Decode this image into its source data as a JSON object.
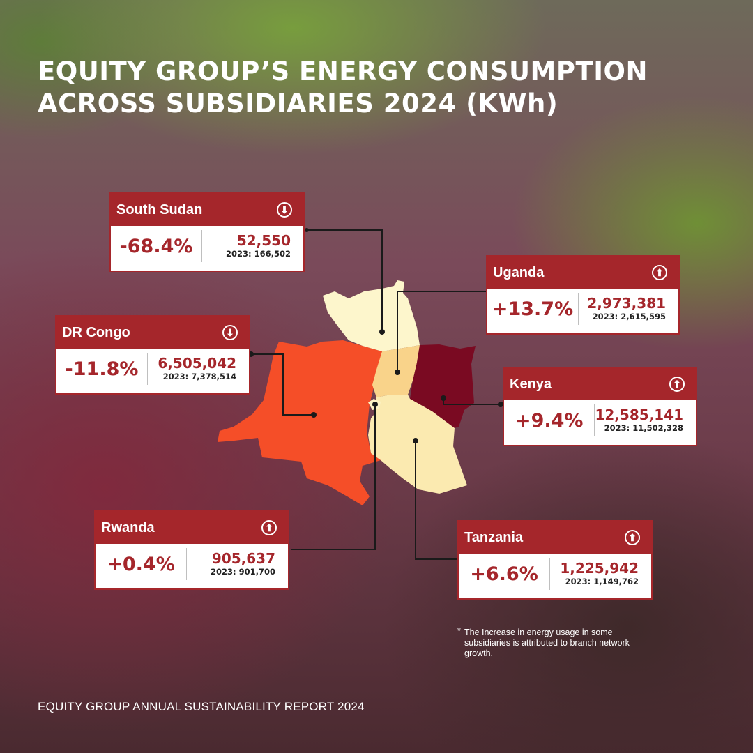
{
  "title": {
    "line1": "EQUITY GROUP’S ENERGY CONSUMPTION",
    "line2": "ACROSS SUBSIDIARIES 2024 (KWh)"
  },
  "colors": {
    "accent": "#a5262b",
    "kenya": "#7a0a22",
    "dr_congo": "#f54e28",
    "uganda": "#f9d38a",
    "tanzania": "#fbeab0",
    "south_sudan": "#fdf6cc",
    "rwanda": "#fdf3c4"
  },
  "countries": {
    "south_sudan": {
      "name": "South Sudan",
      "change": "-68.4%",
      "value": "52,550",
      "previous": "2023: 166,502",
      "trend_icon": "arrow-down-icon",
      "trend_glyph": "⬇"
    },
    "uganda": {
      "name": "Uganda",
      "change": "+13.7%",
      "value": "2,973,381",
      "previous": "2023: 2,615,595",
      "trend_icon": "arrow-up-icon",
      "trend_glyph": "⬆"
    },
    "dr_congo": {
      "name": "DR Congo",
      "change": "-11.8%",
      "value": "6,505,042",
      "previous": "2023: 7,378,514",
      "trend_icon": "arrow-down-icon",
      "trend_glyph": "⬇"
    },
    "kenya": {
      "name": "Kenya",
      "change": "+9.4%",
      "value": "12,585,141",
      "previous": "2023: 11,502,328",
      "trend_icon": "arrow-up-icon",
      "trend_glyph": "⬆"
    },
    "rwanda": {
      "name": "Rwanda",
      "change": "+0.4%",
      "value": "905,637",
      "previous": "2023: 901,700",
      "trend_icon": "arrow-up-icon",
      "trend_glyph": "⬆"
    },
    "tanzania": {
      "name": "Tanzania",
      "change": "+6.6%",
      "value": "1,225,942",
      "previous": "2023: 1,149,762",
      "trend_icon": "arrow-up-icon",
      "trend_glyph": "⬆"
    }
  },
  "footnote": {
    "star": "*",
    "text": "The Increase in energy usage in some subsidiaries is attributed to branch network growth."
  },
  "footer": "EQUITY GROUP ANNUAL SUSTAINABILITY REPORT 2024"
}
